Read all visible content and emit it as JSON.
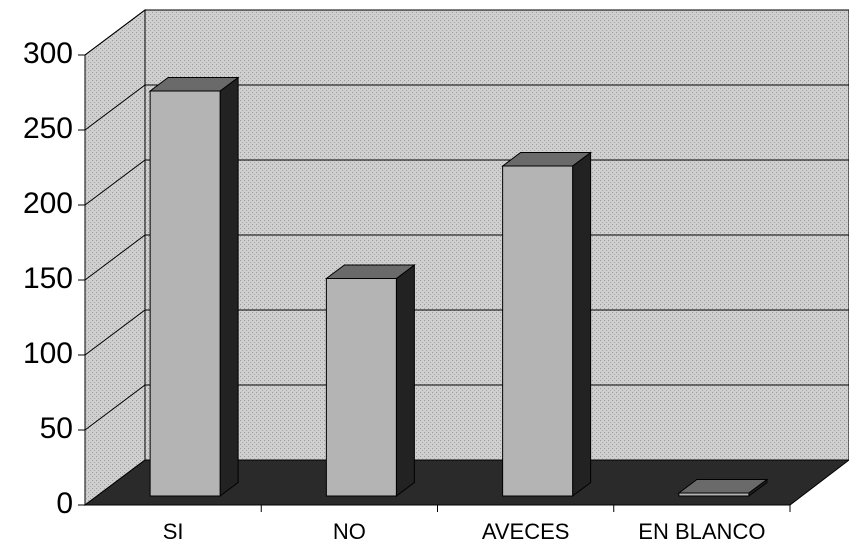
{
  "chart_data": {
    "type": "bar3d",
    "categories": [
      "SI",
      "NO",
      "AVECES",
      "EN BLANCO"
    ],
    "values": [
      270,
      145,
      220,
      2
    ],
    "color": "#b4b4b4",
    "ylim": [
      0,
      300
    ],
    "yticks": [
      0,
      50,
      100,
      150,
      200,
      250,
      300
    ],
    "grid": true
  }
}
